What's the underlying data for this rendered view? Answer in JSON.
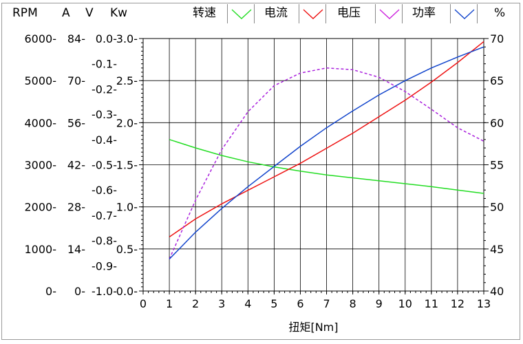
{
  "header": {
    "unit_rpm": "RPM",
    "unit_a": "A",
    "unit_v": "V",
    "unit_kw": "Kw",
    "unit_pct": "%"
  },
  "legend": [
    {
      "name": "转速",
      "color": "#22dd22"
    },
    {
      "name": "电流",
      "color": "#ee1111"
    },
    {
      "name": "电压",
      "color": "#cc22dd"
    },
    {
      "name": "功率",
      "color": "#1144cc"
    }
  ],
  "chart_data": {
    "type": "line",
    "xlabel": "扭矩[Nm]",
    "xlim": [
      0,
      13
    ],
    "x_ticks": [
      "0",
      "1",
      "2",
      "3",
      "4",
      "5",
      "6",
      "7",
      "8",
      "9",
      "10",
      "11",
      "12",
      "13"
    ],
    "grid": true,
    "left_axes": {
      "rpm": {
        "ticks": [
          "6000",
          "5000",
          "4000",
          "3000",
          "2000",
          "1000",
          "0"
        ],
        "range": [
          0,
          6000
        ]
      },
      "a": {
        "ticks": [
          "84",
          "70",
          "56",
          "42",
          "28",
          "14",
          "0"
        ],
        "range": [
          0,
          84
        ]
      },
      "v": {
        "ticks": [
          "0.0",
          "-0.1",
          "-0.2",
          "-0.3",
          "-0.4",
          "-0.5",
          "-0.6",
          "-0.7",
          "-0.8",
          "-0.9",
          "-1.0"
        ],
        "range": [
          -1.0,
          0.0
        ]
      },
      "kw": {
        "ticks": [
          "3.0",
          "2.5",
          "2.0",
          "1.5",
          "1.0",
          "0.5",
          "0.0"
        ],
        "range": [
          0,
          3.0
        ]
      }
    },
    "right_axis": {
      "ticks": [
        "70",
        "65",
        "60",
        "55",
        "50",
        "45",
        "40"
      ],
      "range": [
        40,
        70
      ]
    },
    "series": [
      {
        "color": "#22dd22",
        "dash": "solid",
        "x": [
          1,
          2,
          3,
          4,
          5,
          6,
          7,
          8,
          9,
          10,
          11,
          12,
          13
        ],
        "y": [
          3600,
          3400,
          3220,
          3070,
          2950,
          2850,
          2760,
          2690,
          2620,
          2550,
          2480,
          2400,
          2320
        ]
      },
      {
        "color": "#ee1111",
        "dash": "solid",
        "x": [
          1,
          2,
          3,
          4,
          5,
          6,
          7,
          8,
          9,
          10,
          11,
          12,
          13
        ],
        "y": [
          18.0,
          24.0,
          29.0,
          33.5,
          38.0,
          42.5,
          47.5,
          52.5,
          58.0,
          63.5,
          69.5,
          76.0,
          83.0
        ]
      },
      {
        "color": "#aa22dd",
        "dash": "dashed",
        "x": [
          1,
          2,
          3,
          4,
          5,
          6,
          7,
          8,
          9,
          10,
          11,
          12,
          13
        ],
        "y": [
          0.38,
          1.08,
          1.68,
          2.13,
          2.44,
          2.59,
          2.65,
          2.63,
          2.54,
          2.37,
          2.16,
          1.94,
          1.78
        ]
      },
      {
        "color": "#1144cc",
        "dash": "solid",
        "x": [
          1,
          2,
          3,
          4,
          5,
          6,
          7,
          8,
          9,
          10,
          11,
          12,
          13
        ],
        "y": [
          43.8,
          47.0,
          49.8,
          52.4,
          54.8,
          57.2,
          59.4,
          61.4,
          63.3,
          65.0,
          66.5,
          67.8,
          69.0
        ]
      }
    ]
  }
}
